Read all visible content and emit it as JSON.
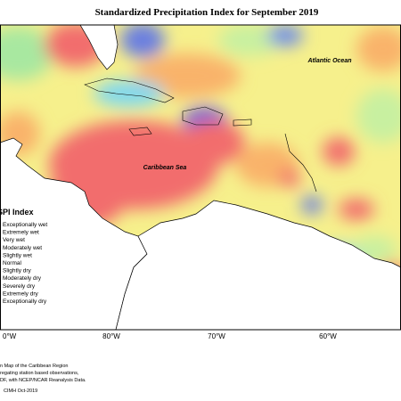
{
  "title": "Standardized Precipitation Index for September 2019",
  "map_labels": [
    "Atlantic Ocean",
    "Caribbean Sea"
  ],
  "longitude_labels": [
    "0°W",
    "80°W",
    "70°W",
    "60°W"
  ],
  "legend": {
    "title": "SPI Index",
    "items": [
      "Exceptionally wet",
      "Extremely wet",
      "Very wet",
      "Moderately wet",
      "Slightly wet",
      "Normal",
      "Slightly dry",
      "Moderately dry",
      "Severely dry",
      "Extremely dry",
      "Exceptionally dry"
    ]
  },
  "footer": [
    "n Map of the Caribbean Region",
    "regating station based observations,",
    "DF, with NCEP/NCAR Reanalysis Data.",
    "CIMH Oct-2019"
  ]
}
